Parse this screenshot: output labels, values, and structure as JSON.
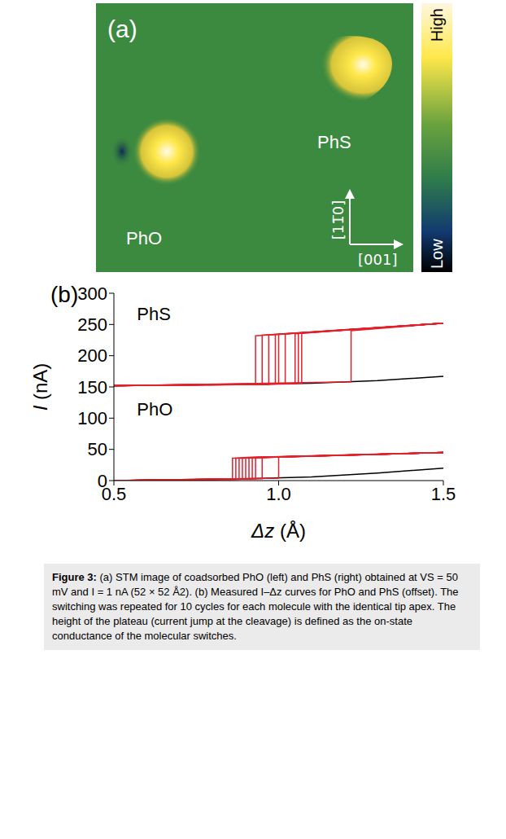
{
  "panel_a": {
    "letter": "(a)",
    "molecules": [
      "PhO",
      "PhS"
    ],
    "directions": [
      "[11̅0]",
      "[001]"
    ],
    "colorbar": {
      "high": "High",
      "low": "Low"
    }
  },
  "chart_data": {
    "type": "line",
    "title": "(b)",
    "x_label": "Δz (Å)",
    "y_label": "I (nA)",
    "xlim": [
      0.5,
      1.5
    ],
    "xticks": [
      0.5,
      {
        "value": 1,
        "label": "1.0"
      },
      1.5
    ],
    "ylim": [
      0,
      300
    ],
    "yticks": [
      0,
      50,
      100,
      150,
      200,
      250,
      300
    ],
    "grid": false,
    "annotations": [
      {
        "text": "PhS",
        "x": 0.57,
        "y": 268
      },
      {
        "text": "PhO",
        "x": 0.57,
        "y": 115
      }
    ],
    "series": [
      {
        "color": "#000000",
        "x": [
          0.5,
          0.7,
          0.9,
          1.1,
          1.3,
          1.5
        ],
        "values": [
          152,
          153,
          154,
          156,
          160,
          167
        ]
      },
      {
        "color": "#e3202b",
        "x": [
          0.5,
          0.93,
          0.93,
          1.5
        ],
        "values": [
          152,
          154,
          232,
          252
        ]
      },
      {
        "color": "#e3202b",
        "x": [
          0.5,
          0.95,
          0.95,
          1.5
        ],
        "values": [
          152,
          154,
          233,
          252
        ]
      },
      {
        "color": "#e3202b",
        "x": [
          0.5,
          0.97,
          0.97,
          1.5
        ],
        "values": [
          152,
          154,
          233,
          252
        ]
      },
      {
        "color": "#e3202b",
        "x": [
          0.5,
          0.99,
          0.99,
          1.5
        ],
        "values": [
          152,
          155,
          234,
          252
        ]
      },
      {
        "color": "#e3202b",
        "x": [
          0.5,
          1.0,
          1.0,
          1.5
        ],
        "values": [
          152,
          155,
          234,
          252
        ]
      },
      {
        "color": "#e3202b",
        "x": [
          0.5,
          1.02,
          1.02,
          1.5
        ],
        "values": [
          152,
          155,
          235,
          252
        ]
      },
      {
        "color": "#e3202b",
        "x": [
          0.5,
          1.05,
          1.05,
          1.5
        ],
        "values": [
          152,
          155,
          235,
          252
        ]
      },
      {
        "color": "#e3202b",
        "x": [
          0.5,
          1.06,
          1.06,
          1.5
        ],
        "values": [
          152,
          156,
          236,
          252
        ]
      },
      {
        "color": "#e3202b",
        "x": [
          0.5,
          1.07,
          1.07,
          1.5
        ],
        "values": [
          152,
          156,
          236,
          252
        ]
      },
      {
        "color": "#e3202b",
        "x": [
          0.5,
          1.22,
          1.22,
          1.5
        ],
        "values": [
          152,
          158,
          240,
          252
        ]
      },
      {
        "color": "#000000",
        "x": [
          0.5,
          0.7,
          0.9,
          1.1,
          1.3,
          1.5
        ],
        "values": [
          0,
          1,
          3,
          6,
          12,
          20
        ]
      },
      {
        "color": "#e3202b",
        "x": [
          0.5,
          0.86,
          0.86,
          1.5
        ],
        "values": [
          0,
          2,
          36,
          45
        ]
      },
      {
        "color": "#e3202b",
        "x": [
          0.5,
          0.87,
          0.87,
          1.5
        ],
        "values": [
          0,
          2,
          36,
          45
        ]
      },
      {
        "color": "#e3202b",
        "x": [
          0.5,
          0.88,
          0.88,
          1.5
        ],
        "values": [
          0,
          2,
          36,
          45
        ]
      },
      {
        "color": "#e3202b",
        "x": [
          0.5,
          0.89,
          0.89,
          1.5
        ],
        "values": [
          0,
          3,
          37,
          45
        ]
      },
      {
        "color": "#e3202b",
        "x": [
          0.5,
          0.9,
          0.9,
          1.5
        ],
        "values": [
          0,
          3,
          37,
          45
        ]
      },
      {
        "color": "#e3202b",
        "x": [
          0.5,
          0.91,
          0.91,
          1.5
        ],
        "values": [
          0,
          3,
          37,
          45
        ]
      },
      {
        "color": "#e3202b",
        "x": [
          0.5,
          0.92,
          0.92,
          1.5
        ],
        "values": [
          0,
          3,
          37,
          45
        ]
      },
      {
        "color": "#e3202b",
        "x": [
          0.5,
          0.93,
          0.93,
          1.5
        ],
        "values": [
          0,
          3,
          37,
          45
        ]
      },
      {
        "color": "#e3202b",
        "x": [
          0.5,
          0.95,
          0.95,
          1.5
        ],
        "values": [
          0,
          3,
          37,
          45
        ]
      },
      {
        "color": "#e3202b",
        "x": [
          0.5,
          1.0,
          1.0,
          1.5
        ],
        "values": [
          0,
          4,
          38,
          45
        ]
      }
    ]
  },
  "caption": {
    "label": "Figure 3:",
    "text": "(a) STM image of coadsorbed PhO (left) and PhS (right) obtained at VS = 50 mV and I = 1 nA (52 × 52 Å2). (b) Measured I–Δz curves for PhO and PhS (offset). The switching was repeated for 10 cycles for each molecule with the identical tip apex. The height of the plateau (current jump at the cleavage) is defined as the on-state conductance of the molecular switches."
  }
}
